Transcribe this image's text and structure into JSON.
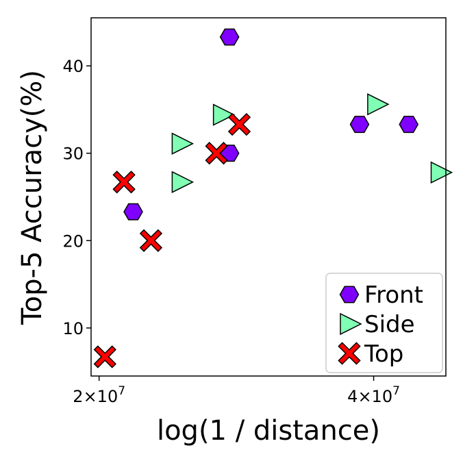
{
  "chart_data": {
    "type": "scatter",
    "xlabel": "log(1 / distance)",
    "ylabel": "Top-5 Accuracy(%)",
    "x_scale": "log",
    "xlim": [
      19600000,
      48000000
    ],
    "ylim": [
      4.5,
      45.5
    ],
    "x_ticks": [
      {
        "value": 20000000,
        "mantissa": "2",
        "times": "×",
        "base": "10",
        "exp": "7"
      },
      {
        "value": 40000000,
        "mantissa": "4",
        "times": "×",
        "base": "10",
        "exp": "7"
      }
    ],
    "y_ticks": [
      {
        "value": 10,
        "label": "10"
      },
      {
        "value": 20,
        "label": "20"
      },
      {
        "value": 30,
        "label": "30"
      },
      {
        "value": 40,
        "label": "40"
      }
    ],
    "grid": false,
    "legend_position": "bottom-right",
    "series": [
      {
        "name": "Front",
        "marker": "hexagon",
        "color": "#7f00ff",
        "points": [
          [
            21800000,
            23.3
          ],
          [
            27800000,
            30.0
          ],
          [
            27800000,
            43.3
          ],
          [
            38600000,
            33.3
          ],
          [
            43700000,
            33.3
          ]
        ]
      },
      {
        "name": "Side",
        "marker": "triangle-right",
        "color": "#80ffb4",
        "points": [
          [
            24600000,
            26.7
          ],
          [
            24600000,
            31.1
          ],
          [
            27300000,
            34.4
          ],
          [
            40300000,
            35.6
          ],
          [
            47300000,
            27.8
          ]
        ]
      },
      {
        "name": "Top",
        "marker": "x",
        "color": "#ff0000",
        "points": [
          [
            20300000,
            6.7
          ],
          [
            21300000,
            26.7
          ],
          [
            22800000,
            20.0
          ],
          [
            26900000,
            30.0
          ],
          [
            28500000,
            33.3
          ]
        ]
      }
    ]
  }
}
